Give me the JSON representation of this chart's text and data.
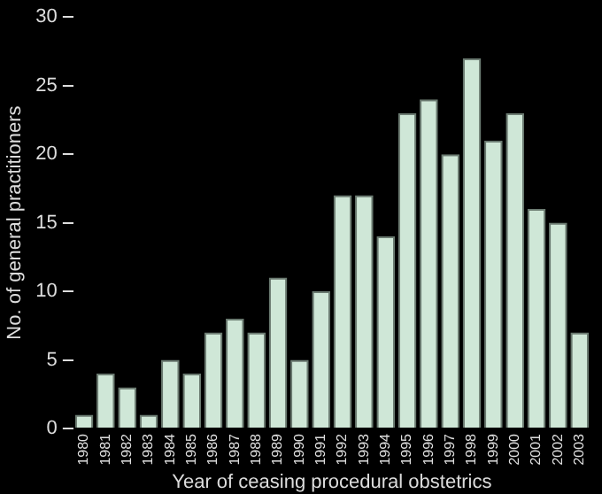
{
  "chart_data": {
    "type": "bar",
    "xlabel": "Year of ceasing procedural obstetrics",
    "ylabel": "No. of general practitioners",
    "categories": [
      "1980",
      "1981",
      "1982",
      "1983",
      "1984",
      "1985",
      "1986",
      "1987",
      "1988",
      "1989",
      "1990",
      "1991",
      "1992",
      "1993",
      "1994",
      "1995",
      "1996",
      "1997",
      "1998",
      "1999",
      "2000",
      "2001",
      "2002",
      "2003"
    ],
    "values": [
      1,
      4,
      3,
      1,
      5,
      4,
      7,
      8,
      7,
      11,
      5,
      10,
      17,
      17,
      14,
      23,
      24,
      20,
      27,
      21,
      23,
      16,
      15,
      7
    ],
    "color": "#cfe7d7",
    "ylim": [
      0,
      30
    ],
    "yticks": [
      0,
      5,
      10,
      15,
      20,
      25,
      30
    ],
    "grid": false,
    "legend": false
  }
}
